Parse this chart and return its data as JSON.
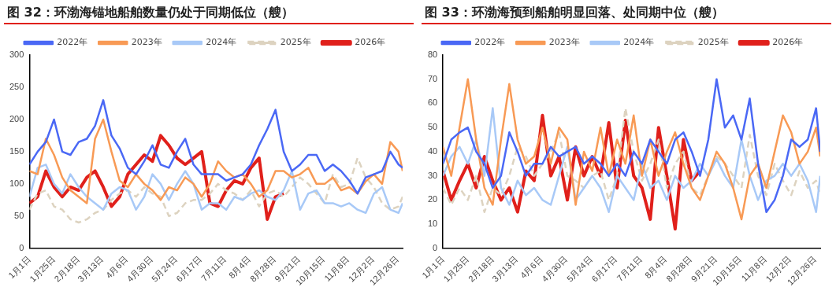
{
  "chart_data": [
    {
      "type": "line",
      "title": "图 32：环渤海锚地船舶数量仍处于同期低位（艘）",
      "legend": "top",
      "x": [
        "--01-01",
        "--01-09",
        "--01-17",
        "--01-25",
        "--02-02",
        "--02-10",
        "--02-18",
        "--02-26",
        "--03-06",
        "--03-14",
        "--03-22",
        "--03-30",
        "--04-07",
        "--04-15",
        "--04-23",
        "--05-01",
        "--05-09",
        "--05-17",
        "--05-25",
        "--06-02",
        "--06-10",
        "--06-18",
        "--06-26",
        "--07-04",
        "--07-12",
        "--07-20",
        "--07-28",
        "--08-05",
        "--08-13",
        "--08-21",
        "--08-29",
        "--09-06",
        "--09-14",
        "--09-22",
        "--09-30",
        "--10-08",
        "--10-16",
        "--10-24",
        "--11-01",
        "--11-09",
        "--11-17",
        "--11-25",
        "--12-03",
        "--12-11",
        "--12-19",
        "--12-27",
        "--12-31"
      ],
      "xlim": [
        "--01-01",
        "--12-31"
      ],
      "xticks": [
        {
          "value": "--01-01",
          "label": "1月1日"
        },
        {
          "value": "--01-25",
          "label": "1月25日"
        },
        {
          "value": "--02-18",
          "label": "2月18日"
        },
        {
          "value": "--03-13",
          "label": "3月13日"
        },
        {
          "value": "--04-06",
          "label": "4月6日"
        },
        {
          "value": "--04-30",
          "label": "4月30日"
        },
        {
          "value": "--05-24",
          "label": "5月24日"
        },
        {
          "value": "--06-17",
          "label": "6月17日"
        },
        {
          "value": "--07-11",
          "label": "7月11日"
        },
        {
          "value": "--08-04",
          "label": "8月4日"
        },
        {
          "value": "--08-28",
          "label": "8月28日"
        },
        {
          "value": "--09-21",
          "label": "9月21日"
        },
        {
          "value": "--10-15",
          "label": "10月15日"
        },
        {
          "value": "--11-08",
          "label": "11月8日"
        },
        {
          "value": "--12-02",
          "label": "12月2日"
        },
        {
          "value": "--12-26",
          "label": "12月26日"
        }
      ],
      "ylim": [
        0,
        300
      ],
      "yticks": [
        0,
        50,
        100,
        150,
        200,
        250,
        300
      ],
      "series": [
        {
          "name": "2022年",
          "color": "#4a68f5",
          "values": [
            130,
            150,
            165,
            200,
            150,
            145,
            165,
            170,
            190,
            230,
            175,
            155,
            125,
            115,
            135,
            160,
            130,
            125,
            150,
            170,
            130,
            115,
            115,
            115,
            105,
            110,
            115,
            130,
            160,
            185,
            215,
            150,
            120,
            130,
            145,
            145,
            120,
            130,
            120,
            105,
            85,
            110,
            115,
            120,
            150,
            130,
            125
          ]
        },
        {
          "name": "2023年",
          "color": "#f89a55",
          "values": [
            120,
            115,
            170,
            145,
            110,
            90,
            80,
            70,
            170,
            200,
            150,
            105,
            95,
            115,
            100,
            90,
            75,
            95,
            90,
            110,
            100,
            80,
            100,
            135,
            120,
            110,
            115,
            100,
            80,
            90,
            120,
            120,
            110,
            115,
            125,
            100,
            100,
            110,
            90,
            95,
            85,
            104,
            115,
            100,
            165,
            150,
            120
          ]
        },
        {
          "name": "2024年",
          "color": "#a8c9f7",
          "values": [
            80,
            125,
            130,
            100,
            85,
            115,
            95,
            80,
            70,
            60,
            85,
            95,
            90,
            60,
            80,
            115,
            100,
            75,
            100,
            120,
            100,
            60,
            70,
            70,
            60,
            80,
            75,
            85,
            90,
            80,
            75,
            90,
            120,
            60,
            85,
            90,
            70,
            70,
            65,
            70,
            60,
            55,
            85,
            95,
            60,
            55,
            70
          ]
        },
        {
          "name": "2025年",
          "color": "#ddd3c0",
          "line_style": "dashed",
          "values": [
            60,
            85,
            90,
            65,
            60,
            45,
            40,
            45,
            55,
            60,
            75,
            85,
            90,
            80,
            95,
            85,
            80,
            50,
            55,
            70,
            75,
            75,
            85,
            100,
            90,
            85,
            75,
            90,
            65,
            85,
            90,
            80,
            95,
            110,
            100,
            85,
            70,
            115,
            95,
            100,
            140,
            110,
            95,
            70,
            60,
            65,
            80
          ]
        },
        {
          "name": "2026年",
          "color": "#e0201b",
          "values": [
            70,
            80,
            120,
            95,
            80,
            95,
            90,
            110,
            120,
            95,
            65,
            80,
            115,
            130,
            145,
            135,
            175,
            160,
            140,
            130,
            140,
            150,
            70,
            65,
            90,
            105,
            100,
            125,
            140,
            45,
            80,
            85,
            null,
            null,
            null,
            null,
            null,
            null,
            null,
            null,
            null,
            null,
            null,
            null,
            null,
            null,
            null
          ]
        }
      ]
    },
    {
      "type": "line",
      "title": "图 33：环渤海预到船舶明显回落、处同期中位（艘）",
      "legend": "top",
      "x": [
        "--01-01",
        "--01-09",
        "--01-17",
        "--01-25",
        "--02-02",
        "--02-10",
        "--02-18",
        "--02-26",
        "--03-06",
        "--03-14",
        "--03-22",
        "--03-30",
        "--04-07",
        "--04-15",
        "--04-23",
        "--05-01",
        "--05-09",
        "--05-17",
        "--05-25",
        "--06-02",
        "--06-10",
        "--06-18",
        "--06-26",
        "--07-04",
        "--07-12",
        "--07-20",
        "--07-28",
        "--08-05",
        "--08-13",
        "--08-21",
        "--08-29",
        "--09-06",
        "--09-14",
        "--09-22",
        "--09-30",
        "--10-08",
        "--10-16",
        "--10-24",
        "--11-01",
        "--11-09",
        "--11-17",
        "--11-25",
        "--12-03",
        "--12-11",
        "--12-19",
        "--12-27",
        "--12-31"
      ],
      "xlim": [
        "--01-01",
        "--12-31"
      ],
      "xticks": [
        {
          "value": "--01-01",
          "label": "1月1日"
        },
        {
          "value": "--01-25",
          "label": "1月25日"
        },
        {
          "value": "--02-18",
          "label": "2月18日"
        },
        {
          "value": "--03-13",
          "label": "3月13日"
        },
        {
          "value": "--04-06",
          "label": "4月6日"
        },
        {
          "value": "--04-30",
          "label": "4月30日"
        },
        {
          "value": "--05-24",
          "label": "5月24日"
        },
        {
          "value": "--06-17",
          "label": "6月17日"
        },
        {
          "value": "--07-11",
          "label": "7月11日"
        },
        {
          "value": "--08-04",
          "label": "8月4日"
        },
        {
          "value": "--08-28",
          "label": "8月28日"
        },
        {
          "value": "--09-21",
          "label": "9月21日"
        },
        {
          "value": "--10-15",
          "label": "10月15日"
        },
        {
          "value": "--11-08",
          "label": "11月8日"
        },
        {
          "value": "--12-02",
          "label": "12月2日"
        },
        {
          "value": "--12-26",
          "label": "12月26日"
        }
      ],
      "ylim": [
        0,
        80
      ],
      "yticks": [
        0,
        10,
        20,
        30,
        40,
        50,
        60,
        70,
        80
      ],
      "series": [
        {
          "name": "2022年",
          "color": "#4a68f5",
          "values": [
            35,
            45,
            48,
            50,
            40,
            35,
            25,
            30,
            48,
            40,
            30,
            35,
            35,
            42,
            38,
            40,
            42,
            35,
            38,
            35,
            30,
            35,
            30,
            40,
            35,
            45,
            40,
            35,
            45,
            48,
            40,
            30,
            45,
            70,
            50,
            55,
            45,
            62,
            35,
            15,
            20,
            30,
            45,
            42,
            45,
            58,
            40
          ]
        },
        {
          "name": "2023年",
          "color": "#f89a55",
          "values": [
            42,
            30,
            50,
            70,
            45,
            25,
            18,
            45,
            68,
            45,
            35,
            38,
            50,
            35,
            50,
            45,
            18,
            40,
            32,
            50,
            30,
            45,
            35,
            55,
            30,
            45,
            30,
            40,
            48,
            35,
            25,
            20,
            30,
            40,
            35,
            25,
            12,
            30,
            35,
            25,
            40,
            55,
            48,
            35,
            40,
            50,
            38
          ]
        },
        {
          "name": "2024年",
          "color": "#a8c9f7",
          "values": [
            30,
            38,
            42,
            35,
            45,
            30,
            58,
            25,
            18,
            28,
            22,
            25,
            20,
            18,
            30,
            42,
            20,
            25,
            30,
            25,
            15,
            30,
            25,
            20,
            35,
            25,
            28,
            20,
            30,
            25,
            28,
            35,
            30,
            37,
            30,
            25,
            45,
            30,
            20,
            28,
            30,
            35,
            30,
            35,
            28,
            15,
            30
          ]
        },
        {
          "name": "2025年",
          "color": "#ddd3c0",
          "line_style": "dashed",
          "values": [
            25,
            18,
            25,
            20,
            30,
            15,
            25,
            22,
            30,
            42,
            38,
            30,
            35,
            40,
            48,
            30,
            28,
            25,
            30,
            32,
            20,
            30,
            58,
            40,
            28,
            35,
            45,
            25,
            35,
            40,
            25,
            22,
            30,
            38,
            35,
            30,
            25,
            47,
            30,
            22,
            35,
            28,
            22,
            32,
            25,
            28,
            22
          ]
        },
        {
          "name": "2026年",
          "color": "#e0201b",
          "values": [
            32,
            20,
            28,
            35,
            25,
            38,
            28,
            20,
            25,
            15,
            32,
            28,
            55,
            30,
            38,
            20,
            42,
            30,
            38,
            30,
            52,
            25,
            53,
            30,
            25,
            12,
            50,
            30,
            8,
            45,
            28,
            32,
            null,
            null,
            null,
            null,
            null,
            null,
            null,
            null,
            null,
            null,
            null,
            null,
            null,
            null,
            null
          ]
        }
      ]
    }
  ]
}
